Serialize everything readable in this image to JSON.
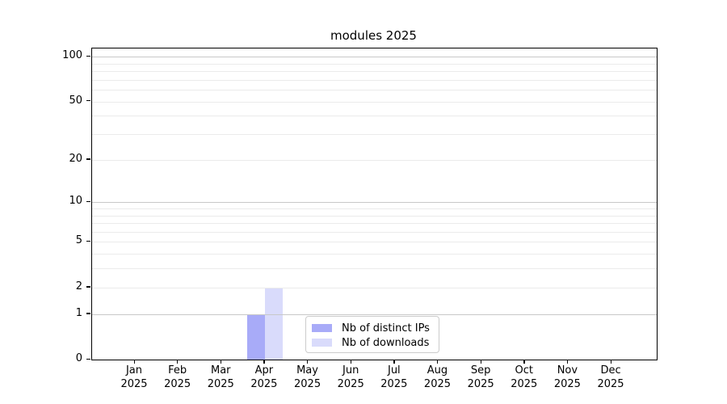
{
  "title": "modules 2025",
  "chart_data": {
    "type": "bar",
    "title": "modules 2025",
    "yscale": "log1p",
    "ylim": [
      0,
      113
    ],
    "grid": "on",
    "categories": [
      "Jan",
      "Feb",
      "Mar",
      "Apr",
      "May",
      "Jun",
      "Jul",
      "Aug",
      "Sep",
      "Oct",
      "Nov",
      "Dec"
    ],
    "category_year": "2025",
    "series": [
      {
        "name": "Nb of distinct IPs",
        "color": "#a8abf8",
        "values": [
          0,
          0,
          0,
          1,
          0,
          0,
          0,
          0,
          0,
          0,
          0,
          0
        ]
      },
      {
        "name": "Nb of downloads",
        "color": "#d9dbfb",
        "values": [
          0,
          0,
          0,
          2,
          0,
          0,
          0,
          0,
          0,
          0,
          0,
          0
        ]
      }
    ],
    "y_ticks_labeled": [
      0,
      1,
      2,
      5,
      10,
      20,
      50,
      100
    ],
    "gridlines_minor": [
      2,
      3,
      4,
      5,
      6,
      7,
      8,
      9,
      20,
      30,
      40,
      50,
      60,
      70,
      80,
      90
    ],
    "gridlines_major": [
      1,
      10,
      100
    ],
    "legend": {
      "position": "lower center",
      "entries": [
        "Nb of distinct IPs",
        "Nb of downloads"
      ]
    }
  },
  "colors": {
    "background": "#ffffff",
    "text": "#000000",
    "spine": "#000000",
    "grid_minor": "#ebebeb",
    "grid_major": "#c8c8c8",
    "legend_border": "#cccccc",
    "series_1": "#a8abf8",
    "series_2": "#d9dbfb"
  }
}
